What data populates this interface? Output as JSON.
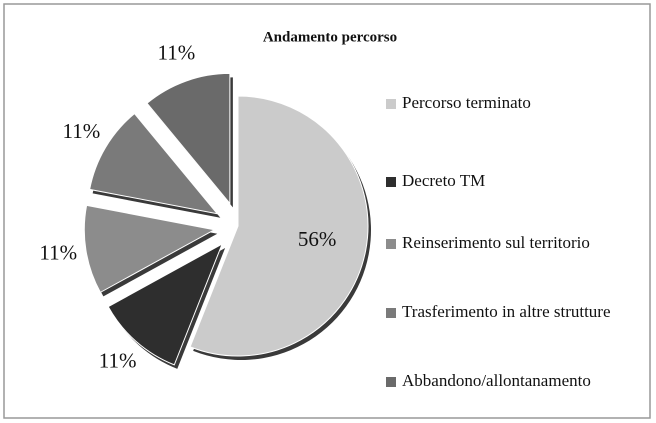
{
  "chart_data": {
    "type": "pie",
    "title": "Andamento percorso",
    "categories": [
      "Percorso terminato",
      "Decreto TM",
      "Reinserimento sul territorio",
      "Trasferimento in altre strutture",
      "Abbandono/allontanamento"
    ],
    "values": [
      56,
      11,
      11,
      11,
      11
    ],
    "value_labels": [
      "56%",
      "11%",
      "11%",
      "11%",
      "11%"
    ],
    "colors": [
      "#cbcbcb",
      "#2e2e2e",
      "#8c8c8c",
      "#7a7a7a",
      "#6a6a6a"
    ],
    "legend": "right"
  }
}
